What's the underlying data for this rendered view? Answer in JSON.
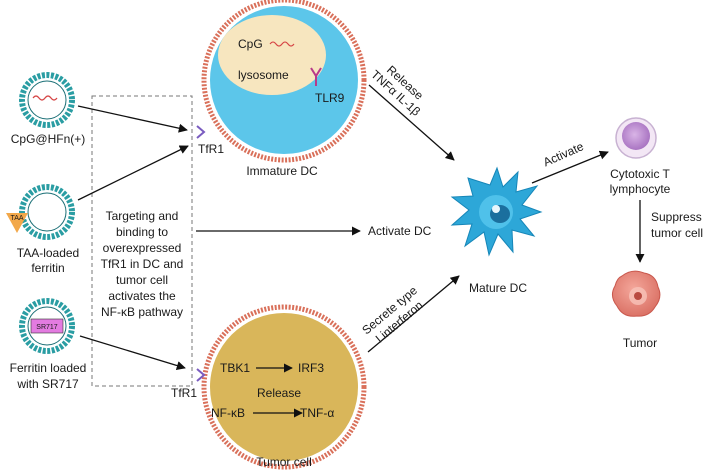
{
  "nanoparticles": {
    "cpg": "CpG@HFn(+)",
    "taa_line1": "TAA-loaded",
    "taa_line2": "ferritin",
    "taa_tag": "TAA",
    "sr_line1": "Ferritin loaded",
    "sr_line2": "with SR717",
    "sr_tag": "SR717"
  },
  "targeting_box": {
    "lines": [
      "Targeting and",
      "binding to",
      "overexpressed",
      "TfR1 in DC and",
      "tumor cell",
      "activates the",
      "NF-κB pathway"
    ]
  },
  "immature_dc": {
    "cpg": "CpG",
    "lysosome": "lysosome",
    "tlr9": "TLR9",
    "tfr1": "TfR1",
    "label": "Immature DC"
  },
  "tumor_cell": {
    "tbk1": "TBK1",
    "irf3": "IRF3",
    "nfkb": "NF-κB",
    "release": "Release",
    "tnf": "TNF-α",
    "tfr1": "TfR1",
    "label": "Tumor cell"
  },
  "arrows_text": {
    "release_line1": "Release",
    "release_line2": "TNFα IL-1β",
    "activate_dc": "Activate DC",
    "secrete_line1": "Secrete type",
    "secrete_line2": "I interferon",
    "activate": "Activate",
    "suppress_line1": "Suppress",
    "suppress_line2": "tumor cell"
  },
  "mature_dc": {
    "label": "Mature DC"
  },
  "t_cell": {
    "label_line1": "Cytotoxic T",
    "label_line2": "lymphocyte"
  },
  "tumor": {
    "label": "Tumor"
  },
  "colors": {
    "ring_teal": "#2a9da3",
    "immature_fill": "#5cc6ea",
    "lysosome_fill": "#f7e6bf",
    "tumor_fill": "#d9b65a",
    "dc_blue": "#2da7d8",
    "receptor": "#7a5cc0"
  }
}
